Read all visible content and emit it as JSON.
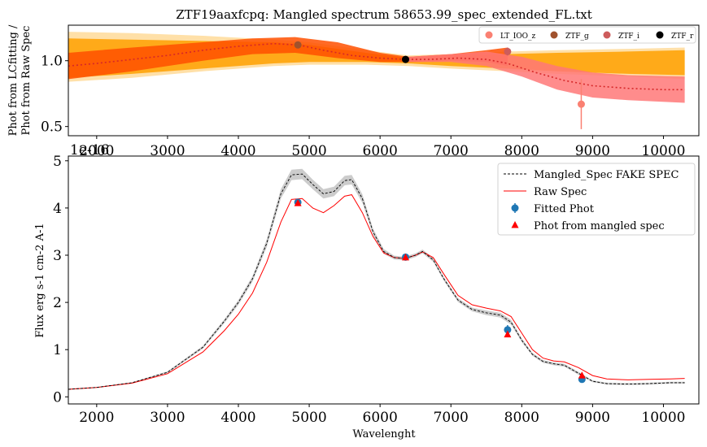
{
  "figure": {
    "title": "ZTF19aaxfcpq: Mangled spectrum 58653.99_spec_extended_FL.txt"
  },
  "chart_data": [
    {
      "type": "line",
      "panel": "top",
      "title": "ZTF19aaxfcpq: Mangled spectrum 58653.99_spec_extended_FL.txt",
      "xlabel": "",
      "ylabel_lines": [
        "Phot from LCfitting /",
        "Phot from Raw Spec"
      ],
      "xlim": [
        1600,
        10500
      ],
      "ylim": [
        0.43,
        1.27
      ],
      "xticks": [
        2000,
        3000,
        4000,
        5000,
        6000,
        7000,
        8000,
        9000,
        10000
      ],
      "yticks": [
        0.5,
        1.0
      ],
      "grid": false,
      "legend_placement": "top-right",
      "bands": [
        {
          "color": "#ffe0a8",
          "x": [
            1600,
            2500,
            3500,
            4500,
            5000,
            5800,
            6400,
            7000,
            7800,
            8500,
            9500,
            10300
          ],
          "lower": [
            0.84,
            0.87,
            0.92,
            0.96,
            0.97,
            0.97,
            0.96,
            0.94,
            0.92,
            0.9,
            0.88,
            0.86
          ],
          "upper": [
            1.22,
            1.21,
            1.19,
            1.16,
            1.14,
            1.08,
            1.04,
            1.05,
            1.07,
            1.08,
            1.09,
            1.1
          ]
        },
        {
          "color": "#ffa000",
          "x": [
            1600,
            2500,
            3500,
            4500,
            5000,
            5800,
            6400,
            7000,
            7800,
            8500,
            9500,
            10300
          ],
          "lower": [
            0.87,
            0.9,
            0.94,
            0.98,
            0.99,
            0.99,
            0.98,
            0.96,
            0.94,
            0.92,
            0.9,
            0.89
          ],
          "upper": [
            1.17,
            1.16,
            1.15,
            1.14,
            1.12,
            1.06,
            1.02,
            1.03,
            1.05,
            1.06,
            1.07,
            1.08
          ]
        },
        {
          "color": "#ff5000",
          "x": [
            1600,
            2500,
            3500,
            4200,
            4800,
            5400,
            6000,
            6400,
            7000,
            7500,
            7800
          ],
          "lower": [
            0.86,
            0.92,
            1.0,
            1.05,
            1.06,
            1.02,
            0.99,
            0.99,
            1.0,
            0.99,
            0.96
          ],
          "upper": [
            1.06,
            1.1,
            1.14,
            1.17,
            1.18,
            1.14,
            1.06,
            1.03,
            1.05,
            1.08,
            1.1
          ]
        },
        {
          "color": "#ff7878",
          "x": [
            6400,
            7000,
            7500,
            8000,
            8500,
            9000,
            9500,
            10300
          ],
          "lower": [
            0.99,
            0.99,
            0.96,
            0.88,
            0.78,
            0.72,
            0.7,
            0.68
          ],
          "upper": [
            1.03,
            1.05,
            1.07,
            1.03,
            0.96,
            0.91,
            0.89,
            0.88
          ]
        }
      ],
      "ratio_curve": {
        "color": "#d62728",
        "x": [
          1600,
          2000,
          2500,
          3000,
          3500,
          4000,
          4500,
          4850,
          5200,
          5600,
          6000,
          6350,
          6700,
          7100,
          7500,
          7800,
          8200,
          8600,
          9000,
          9500,
          10000,
          10300
        ],
        "y": [
          0.96,
          0.98,
          1.01,
          1.04,
          1.08,
          1.11,
          1.13,
          1.12,
          1.08,
          1.04,
          1.02,
          1.01,
          1.01,
          1.02,
          1.01,
          0.98,
          0.91,
          0.85,
          0.81,
          0.79,
          0.78,
          0.78
        ]
      },
      "series": [
        {
          "name": "LT_IOO_z",
          "color": "#fa8072",
          "x": [
            8840
          ],
          "y": [
            0.67
          ],
          "yerr": [
            0.19
          ]
        },
        {
          "name": "ZTF_g",
          "color": "#a0522d",
          "x": [
            4840
          ],
          "y": [
            1.12
          ],
          "yerr": [
            0.0
          ]
        },
        {
          "name": "ZTF_i",
          "color": "#cd5c5c",
          "x": [
            7800
          ],
          "y": [
            1.07
          ],
          "yerr": [
            0.03
          ]
        },
        {
          "name": "ZTF_r",
          "color": "#000000",
          "x": [
            6360
          ],
          "y": [
            1.01
          ],
          "yerr": [
            0.0
          ]
        }
      ]
    },
    {
      "type": "line",
      "panel": "bottom",
      "title": "",
      "xlabel": "Wavelenght",
      "ylabel": "Flux erg s-1 cm-2 A-1",
      "offset_text": "1e-16",
      "xlim": [
        1600,
        10500
      ],
      "ylim": [
        -0.15,
        5.1
      ],
      "xticks": [
        2000,
        3000,
        4000,
        5000,
        6000,
        7000,
        8000,
        9000,
        10000
      ],
      "yticks": [
        0,
        1,
        2,
        3,
        4,
        5
      ],
      "grid": false,
      "legend_placement": "top-right",
      "legend": [
        "Mangled_Spec FAKE SPEC",
        "Raw Spec",
        "Fitted Phot",
        "Phot from mangled spec"
      ],
      "mangled_spec": {
        "name": "Mangled_Spec FAKE SPEC",
        "color": "#000000",
        "band_color": "#cccccc",
        "x": [
          1600,
          2000,
          2500,
          3000,
          3500,
          3800,
          4000,
          4200,
          4400,
          4600,
          4750,
          4900,
          5050,
          5200,
          5350,
          5500,
          5600,
          5750,
          5900,
          6050,
          6200,
          6350,
          6500,
          6600,
          6750,
          6900,
          7100,
          7300,
          7500,
          7700,
          7850,
          8000,
          8150,
          8300,
          8450,
          8600,
          8800,
          9000,
          9200,
          9500,
          9800,
          10100,
          10300
        ],
        "y": [
          0.16,
          0.2,
          0.3,
          0.52,
          1.05,
          1.6,
          2.0,
          2.5,
          3.25,
          4.3,
          4.7,
          4.72,
          4.5,
          4.3,
          4.35,
          4.58,
          4.6,
          4.2,
          3.5,
          3.08,
          2.95,
          2.93,
          3.0,
          3.08,
          2.9,
          2.5,
          2.05,
          1.85,
          1.78,
          1.73,
          1.58,
          1.2,
          0.9,
          0.75,
          0.7,
          0.67,
          0.5,
          0.33,
          0.28,
          0.27,
          0.28,
          0.3,
          0.3
        ],
        "band_halfwidth": [
          0.01,
          0.01,
          0.01,
          0.02,
          0.03,
          0.04,
          0.05,
          0.06,
          0.08,
          0.1,
          0.11,
          0.11,
          0.1,
          0.1,
          0.1,
          0.1,
          0.1,
          0.09,
          0.07,
          0.05,
          0.04,
          0.04,
          0.04,
          0.04,
          0.04,
          0.04,
          0.04,
          0.04,
          0.05,
          0.05,
          0.05,
          0.04,
          0.03,
          0.03,
          0.03,
          0.03,
          0.03,
          0.02,
          0.02,
          0.02,
          0.02,
          0.02,
          0.02
        ]
      },
      "raw_spec": {
        "name": "Raw Spec",
        "color": "#ff0000",
        "x": [
          1600,
          2000,
          2500,
          3000,
          3500,
          3800,
          4000,
          4200,
          4400,
          4600,
          4750,
          4900,
          5050,
          5200,
          5350,
          5500,
          5600,
          5750,
          5900,
          6050,
          6200,
          6350,
          6500,
          6600,
          6750,
          6900,
          7100,
          7300,
          7500,
          7700,
          7850,
          8000,
          8150,
          8300,
          8450,
          8600,
          8800,
          9000,
          9200,
          9500,
          9800,
          10100,
          10300
        ],
        "y": [
          0.16,
          0.2,
          0.29,
          0.49,
          0.95,
          1.4,
          1.75,
          2.2,
          2.85,
          3.7,
          4.18,
          4.2,
          4.0,
          3.9,
          4.05,
          4.25,
          4.28,
          3.9,
          3.4,
          3.05,
          2.95,
          2.93,
          3.0,
          3.07,
          2.95,
          2.6,
          2.15,
          1.95,
          1.88,
          1.82,
          1.7,
          1.35,
          1.0,
          0.82,
          0.76,
          0.74,
          0.62,
          0.45,
          0.38,
          0.36,
          0.37,
          0.38,
          0.39
        ]
      },
      "fitted_phot": {
        "name": "Fitted Phot",
        "color": "#1f77b4",
        "x": [
          4840,
          6360,
          7800,
          8850
        ],
        "y": [
          4.12,
          2.96,
          1.42,
          0.37
        ],
        "yerr": [
          0.06,
          0.04,
          0.1,
          0.06
        ]
      },
      "phot_from_mangled": {
        "name": "Phot from mangled spec",
        "color": "#ff0000",
        "x": [
          4840,
          6360,
          7800,
          8850
        ],
        "y": [
          4.1,
          2.95,
          1.32,
          0.45
        ]
      }
    }
  ]
}
